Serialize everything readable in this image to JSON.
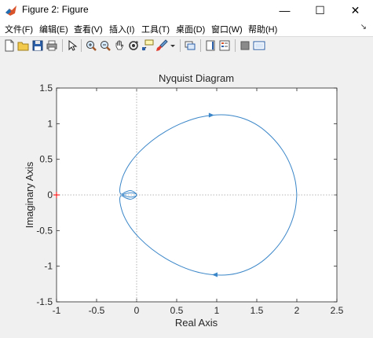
{
  "window": {
    "title": "Figure 2: Figure",
    "minimize": "—",
    "maximize": "☐",
    "close": "✕"
  },
  "menu": {
    "items": [
      "文件(F)",
      "编辑(E)",
      "查看(V)",
      "插入(I)",
      "工具(T)",
      "桌面(D)",
      "窗口(W)",
      "帮助(H)"
    ],
    "overflow": "↘"
  },
  "toolbar": {
    "icons": [
      "new-figure-icon",
      "open-file-icon",
      "save-icon",
      "print-icon",
      "edit-plot-arrow-icon",
      "zoom-in-icon",
      "zoom-out-icon",
      "pan-hand-icon",
      "rotate-3d-icon",
      "data-cursor-icon",
      "brush-icon",
      "dropdown-arrow-icon",
      "link-plot-icon",
      "insert-colorbar-icon",
      "insert-legend-icon",
      "hide-plot-tools-icon",
      "show-plot-tools-icon"
    ]
  },
  "chart_data": {
    "type": "line",
    "title": "Nyquist Diagram",
    "xlabel": "Real Axis",
    "ylabel": "Imaginary Axis",
    "xlim": [
      -1,
      2.5
    ],
    "ylim": [
      -1.5,
      1.5
    ],
    "xticks": [
      "-1",
      "-0.5",
      "0",
      "0.5",
      "1",
      "1.5",
      "2",
      "2.5"
    ],
    "yticks": [
      "1.5",
      "1",
      "0.5",
      "0",
      "-0.5",
      "-1",
      "-1.5"
    ],
    "grid": false,
    "line_color": "#3a86c8",
    "critical_point": {
      "x": -1,
      "y": 0,
      "marker": "+",
      "color": "#ff0000"
    },
    "upper_branch": {
      "x": [
        2.0,
        1.98,
        1.92,
        1.82,
        1.68,
        1.52,
        1.34,
        1.15,
        0.95,
        0.75,
        0.55,
        0.36,
        0.19,
        0.04,
        -0.08,
        -0.16,
        -0.2,
        -0.21,
        -0.19,
        -0.14,
        -0.08,
        -0.03,
        0.0,
        -0.02,
        -0.07,
        -0.13,
        -0.18
      ],
      "y": [
        0.0,
        0.2,
        0.42,
        0.63,
        0.82,
        0.97,
        1.07,
        1.12,
        1.12,
        1.08,
        1.0,
        0.89,
        0.76,
        0.61,
        0.45,
        0.29,
        0.15,
        0.05,
        0.01,
        0.04,
        0.06,
        0.04,
        0.0,
        -0.02,
        -0.03,
        -0.02,
        0.0
      ]
    },
    "arrows": [
      {
        "x": 0.93,
        "y": 1.12,
        "direction": "right"
      },
      {
        "x": 0.98,
        "y": -1.12,
        "direction": "left"
      }
    ],
    "zero_lines": {
      "style": "dotted",
      "color": "#a0a0a0"
    }
  }
}
